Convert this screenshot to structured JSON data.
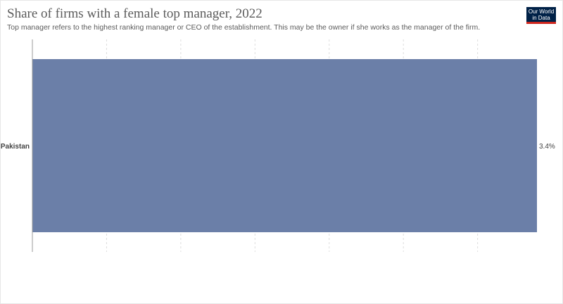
{
  "header": {
    "title": "Share of firms with a female top manager, 2022",
    "subtitle": "Top manager refers to the highest ranking manager or CEO of the establishment. This may be the owner if she works as the manager of the firm.",
    "logo_line1": "Our World",
    "logo_line2": "in Data"
  },
  "colors": {
    "bar": "#6b7fa8",
    "grid": "#dddddd",
    "axis": "#999999",
    "text": "#444444"
  },
  "chart_data": {
    "type": "bar",
    "orientation": "horizontal",
    "title": "Share of firms with a female top manager, 2022",
    "categories": [
      "Pakistan"
    ],
    "values": [
      3.4
    ],
    "value_labels": [
      "3.4%"
    ],
    "unit": "%",
    "xlim": [
      0,
      3.4
    ],
    "grid": true,
    "gridlines": [
      0.5,
      1,
      1.5,
      2,
      2.5,
      3
    ],
    "xlabel": "",
    "ylabel": ""
  }
}
